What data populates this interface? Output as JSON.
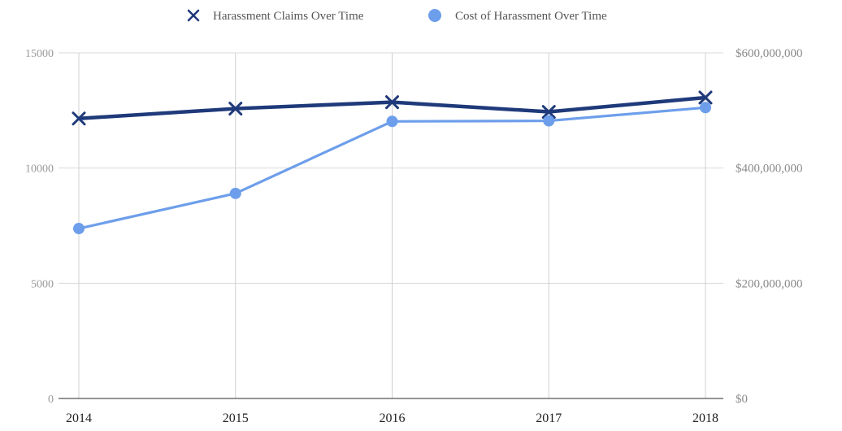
{
  "chart_data": {
    "type": "line",
    "title": "",
    "xlabel": "",
    "ylabel": "",
    "categories": [
      "2014",
      "2015",
      "2016",
      "2017",
      "2018"
    ],
    "y_left": {
      "range": [
        0,
        15000
      ],
      "ticks": [
        0,
        5000,
        10000,
        15000
      ],
      "tick_labels": [
        "0",
        "5000",
        "10000",
        "15000"
      ]
    },
    "y_right": {
      "range": [
        0,
        600000000
      ],
      "ticks": [
        0,
        200000000,
        400000000,
        600000000
      ],
      "tick_labels": [
        "$0",
        "$200,000,000",
        "$400,000,000",
        "$600,000,000"
      ]
    },
    "grid": true,
    "legend_position": "top",
    "series": [
      {
        "name": "Harassment Claims Over Time",
        "axis": "left",
        "marker": "x",
        "color": "#1f3a7a",
        "values": [
          12150,
          12580,
          12860,
          12440,
          13060
        ]
      },
      {
        "name": "Cost of Harassment Over Time",
        "axis": "right",
        "marker": "circle",
        "color": "#6d9eeb",
        "values": [
          295000000,
          356000000,
          481000000,
          482000000,
          505000000
        ]
      }
    ]
  }
}
